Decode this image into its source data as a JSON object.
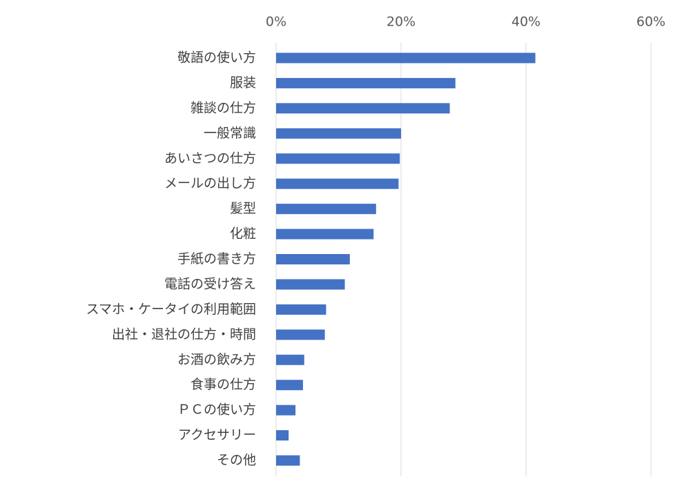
{
  "chart_data": {
    "type": "bar",
    "orientation": "horizontal",
    "categories": [
      "敬語の使い方",
      "服装",
      "雑談の仕方",
      "一般常識",
      "あいさつの仕方",
      "メールの出し方",
      "髪型",
      "化粧",
      "手紙の書き方",
      "電話の受け答え",
      "スマホ・ケータイの利用範囲",
      "出社・退社の仕方・時間",
      "お酒の飲み方",
      "食事の仕方",
      "ＰＣの使い方",
      "アクセサリー",
      "その他"
    ],
    "values": [
      41.5,
      28.7,
      27.8,
      20.0,
      19.8,
      19.6,
      16.0,
      15.6,
      11.8,
      11.0,
      8.0,
      7.8,
      4.5,
      4.3,
      3.1,
      2.0,
      3.8
    ],
    "xlim": [
      0,
      60
    ],
    "xticks": [
      "0%",
      "20%",
      "40%",
      "60%"
    ],
    "xtick_values": [
      0,
      20,
      40,
      60
    ],
    "x_axis_position": "top",
    "grid": true,
    "legend": "none",
    "bar_color": "#4472C4",
    "grid_color": "#D9D9D9",
    "title": "",
    "xlabel": "",
    "ylabel": ""
  }
}
